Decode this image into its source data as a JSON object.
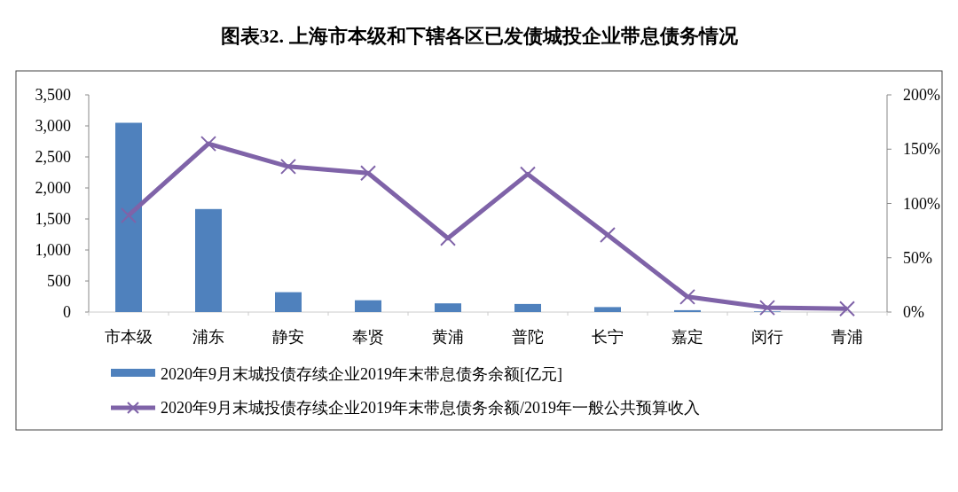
{
  "chart_data": {
    "type": "bar",
    "title": "图表32. 上海市本级和下辖各区已发债城投企业带息债务情况",
    "categories": [
      "市本级",
      "浦东",
      "静安",
      "奉贤",
      "黄浦",
      "普陀",
      "长宁",
      "嘉定",
      "闵行",
      "青浦"
    ],
    "series": [
      {
        "name": "2020年9月末城投债存续企业2019年末带息债务余额[亿元]",
        "color": "#4f81bd",
        "values": [
          3050,
          1660,
          320,
          190,
          140,
          130,
          80,
          30,
          10,
          0
        ]
      },
      {
        "name": "2020年9月末城投债存续企业2019年末带息债务余额/2019年一般公共预算收入",
        "type": "line",
        "axis": "y2",
        "color": "#7f63a8",
        "marker": "cross",
        "values": [
          89,
          155,
          134,
          128,
          68,
          127,
          71,
          14,
          4,
          3
        ]
      }
    ],
    "ylim": [
      0,
      3500
    ],
    "yticks": [
      0,
      {
        "value": 500,
        "label": "500"
      },
      {
        "value": 1000,
        "label": "1,000"
      },
      {
        "value": 1500,
        "label": "1,500"
      },
      {
        "value": 2000,
        "label": "2,000"
      },
      {
        "value": 2500,
        "label": "2,500"
      },
      {
        "value": 3000,
        "label": "3,000"
      },
      {
        "value": 3500,
        "label": "3,500"
      }
    ],
    "y2lim": [
      0,
      200
    ],
    "y2ticks": [
      {
        "value": 0,
        "label": "0%"
      },
      {
        "value": 50,
        "label": "50%"
      },
      {
        "value": 100,
        "label": "100%"
      },
      {
        "value": 150,
        "label": "150%"
      },
      {
        "value": 200,
        "label": "200%"
      }
    ],
    "legend": "bottom",
    "grid": false
  }
}
